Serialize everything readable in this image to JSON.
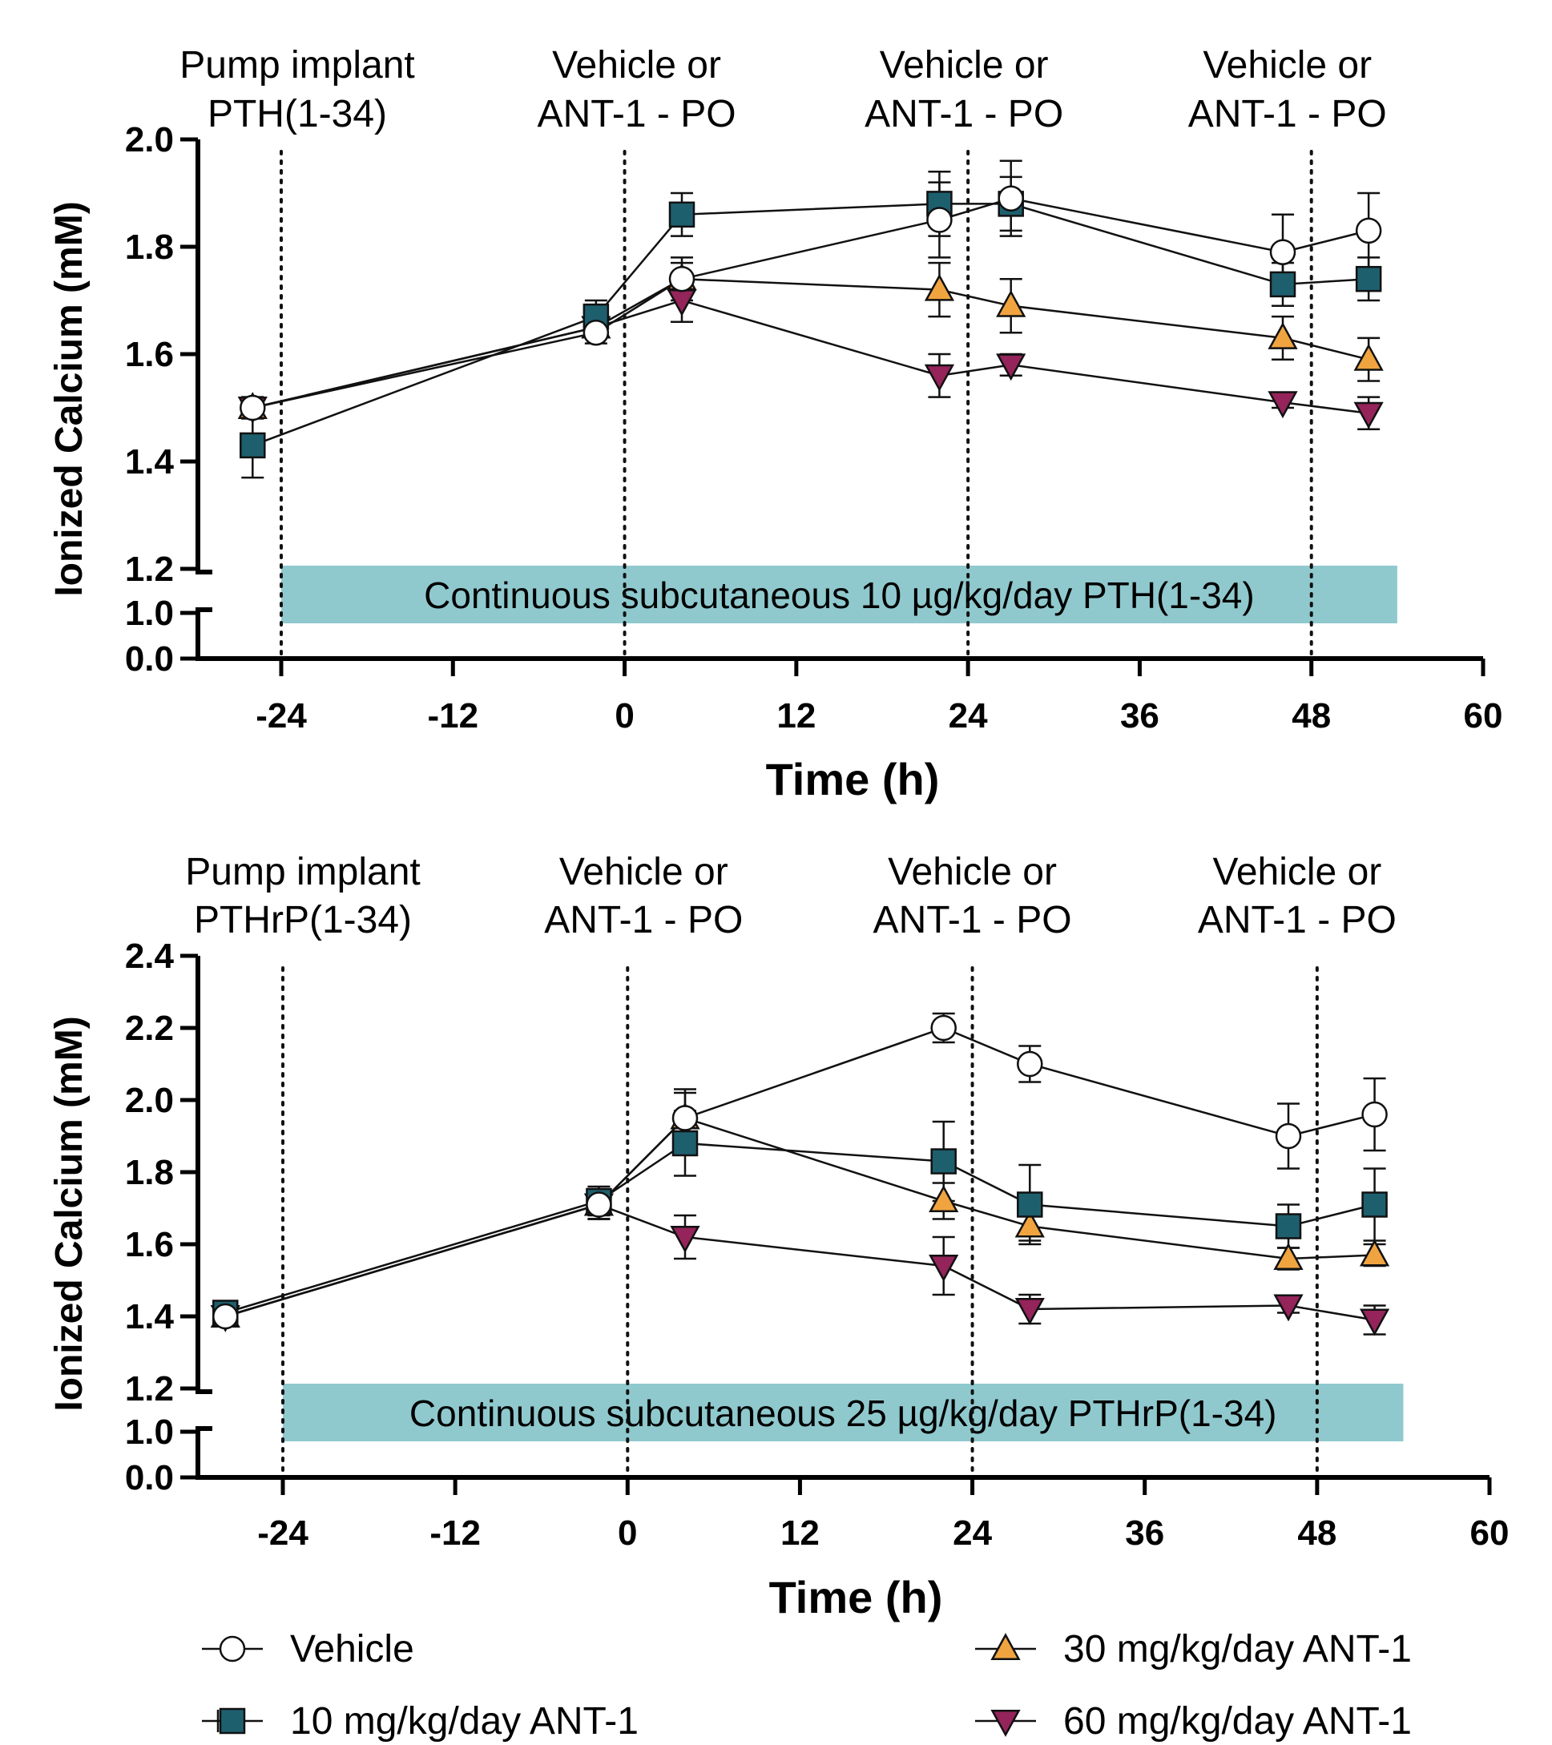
{
  "chart_data": [
    {
      "type": "line",
      "xlabel": "Time (h)",
      "ylabel": "Ionized Calcium (mM)",
      "x_ticks": [
        "-24",
        "-12",
        "0",
        "12",
        "24",
        "36",
        "48",
        "60"
      ],
      "y_ticks": [
        "0.0",
        "1.0",
        "1.2",
        "1.4",
        "1.6",
        "1.8",
        "2.0"
      ],
      "xlim": [
        -30,
        60
      ],
      "ylim_upper": [
        1.2,
        2.0
      ],
      "ylim_lower": [
        0.0,
        1.0
      ],
      "axis_break": true,
      "grid": false,
      "event_lines_x": [
        -24,
        0,
        24,
        48
      ],
      "annotations": [
        {
          "x": -24,
          "lines": [
            "Pump implant",
            "PTH(1-34)"
          ]
        },
        {
          "x": 0,
          "lines": [
            "Vehicle or",
            "ANT-1 - PO"
          ]
        },
        {
          "x": 24,
          "lines": [
            "Vehicle or",
            "ANT-1 - PO"
          ]
        },
        {
          "x": 48,
          "lines": [
            "Vehicle or",
            "ANT-1 - PO"
          ]
        }
      ],
      "infusion_label": "Continuous subcutaneous 10 µg/kg/day PTH(1-34)",
      "infusion_range_x": [
        -24,
        54
      ],
      "series": [
        {
          "name": "Vehicle",
          "marker": "circle",
          "x": [
            -26,
            -2,
            4,
            22,
            27,
            46,
            52
          ],
          "values": [
            1.5,
            1.64,
            1.74,
            1.85,
            1.89,
            1.79,
            1.83
          ],
          "errors": [
            0.01,
            0.02,
            0.04,
            0.07,
            0.07,
            0.07,
            0.07
          ]
        },
        {
          "name": "10 mg/kg/day ANT-1",
          "marker": "square",
          "x": [
            -26,
            -2,
            4,
            22,
            27,
            46,
            52
          ],
          "values": [
            1.43,
            1.67,
            1.86,
            1.88,
            1.88,
            1.73,
            1.74
          ],
          "errors": [
            0.06,
            0.03,
            0.04,
            0.06,
            0.05,
            0.04,
            0.04
          ]
        },
        {
          "name": "30 mg/kg/day ANT-1",
          "marker": "triangle-up",
          "x": [
            -26,
            -2,
            4,
            22,
            27,
            46,
            52
          ],
          "values": [
            1.5,
            1.65,
            1.74,
            1.72,
            1.69,
            1.63,
            1.59
          ],
          "errors": [
            0.02,
            0.02,
            0.03,
            0.05,
            0.05,
            0.04,
            0.04
          ]
        },
        {
          "name": "60 mg/kg/day ANT-1",
          "marker": "triangle-down",
          "x": [
            -26,
            -2,
            4,
            22,
            27,
            46,
            52
          ],
          "values": [
            1.5,
            1.65,
            1.7,
            1.56,
            1.58,
            1.51,
            1.49
          ],
          "errors": [
            0.02,
            0.02,
            0.04,
            0.04,
            0.02,
            0.01,
            0.03
          ]
        }
      ]
    },
    {
      "type": "line",
      "xlabel": "Time (h)",
      "ylabel": "Ionized Calcium (mM)",
      "x_ticks": [
        "-24",
        "-12",
        "0",
        "12",
        "24",
        "36",
        "48",
        "60"
      ],
      "y_ticks": [
        "0.0",
        "1.0",
        "1.2",
        "1.4",
        "1.6",
        "1.8",
        "2.0",
        "2.2",
        "2.4"
      ],
      "xlim": [
        -30,
        60
      ],
      "ylim_upper": [
        1.2,
        2.4
      ],
      "ylim_lower": [
        0.0,
        1.0
      ],
      "axis_break": true,
      "grid": false,
      "event_lines_x": [
        -24,
        0,
        24,
        48
      ],
      "annotations": [
        {
          "x": -24,
          "lines": [
            "Pump implant",
            "PTHrP(1-34)"
          ]
        },
        {
          "x": 0,
          "lines": [
            "Vehicle or",
            "ANT-1 - PO"
          ]
        },
        {
          "x": 24,
          "lines": [
            "Vehicle or",
            "ANT-1 - PO"
          ]
        },
        {
          "x": 48,
          "lines": [
            "Vehicle or",
            "ANT-1 - PO"
          ]
        }
      ],
      "infusion_label": "Continuous subcutaneous 25 µg/kg/day PTHrP(1-34)",
      "infusion_range_x": [
        -24,
        54
      ],
      "series": [
        {
          "name": "Vehicle",
          "marker": "circle",
          "x": [
            -28,
            -2,
            4,
            22,
            28,
            46,
            52
          ],
          "values": [
            1.4,
            1.71,
            1.95,
            2.2,
            2.1,
            1.9,
            1.96
          ],
          "errors": [
            0.02,
            0.04,
            0.08,
            0.04,
            0.05,
            0.09,
            0.1
          ]
        },
        {
          "name": "10 mg/kg/day ANT-1",
          "marker": "square",
          "x": [
            -28,
            -2,
            4,
            22,
            28,
            46,
            52
          ],
          "values": [
            1.41,
            1.72,
            1.88,
            1.83,
            1.71,
            1.65,
            1.71
          ],
          "errors": [
            0.02,
            0.04,
            0.09,
            0.11,
            0.11,
            0.06,
            0.1
          ]
        },
        {
          "name": "30 mg/kg/day ANT-1",
          "marker": "triangle-up",
          "x": [
            -28,
            -2,
            4,
            22,
            28,
            46,
            52
          ],
          "values": [
            1.4,
            1.71,
            1.95,
            1.72,
            1.65,
            1.56,
            1.57
          ],
          "errors": [
            0.02,
            0.04,
            0.07,
            0.05,
            0.04,
            0.03,
            0.03
          ]
        },
        {
          "name": "60 mg/kg/day ANT-1",
          "marker": "triangle-down",
          "x": [
            -28,
            -2,
            4,
            22,
            28,
            46,
            52
          ],
          "values": [
            1.4,
            1.71,
            1.62,
            1.54,
            1.42,
            1.43,
            1.39
          ],
          "errors": [
            0.02,
            0.04,
            0.06,
            0.08,
            0.04,
            0.02,
            0.04
          ]
        }
      ]
    }
  ],
  "legend": {
    "placement": "bottom",
    "items": [
      {
        "label": "Vehicle",
        "marker": "circle"
      },
      {
        "label": "30 mg/kg/day ANT-1",
        "marker": "triangle-up"
      },
      {
        "label": "10 mg/kg/day ANT-1",
        "marker": "square"
      },
      {
        "label": "60 mg/kg/day ANT-1",
        "marker": "triangle-down"
      }
    ]
  },
  "colors": {
    "circle": "#ffffff",
    "square": "#1e5f6e",
    "triangle-up": "#f0a440",
    "triangle-down": "#94245a",
    "infusion_bar": "#8fc9ce"
  }
}
